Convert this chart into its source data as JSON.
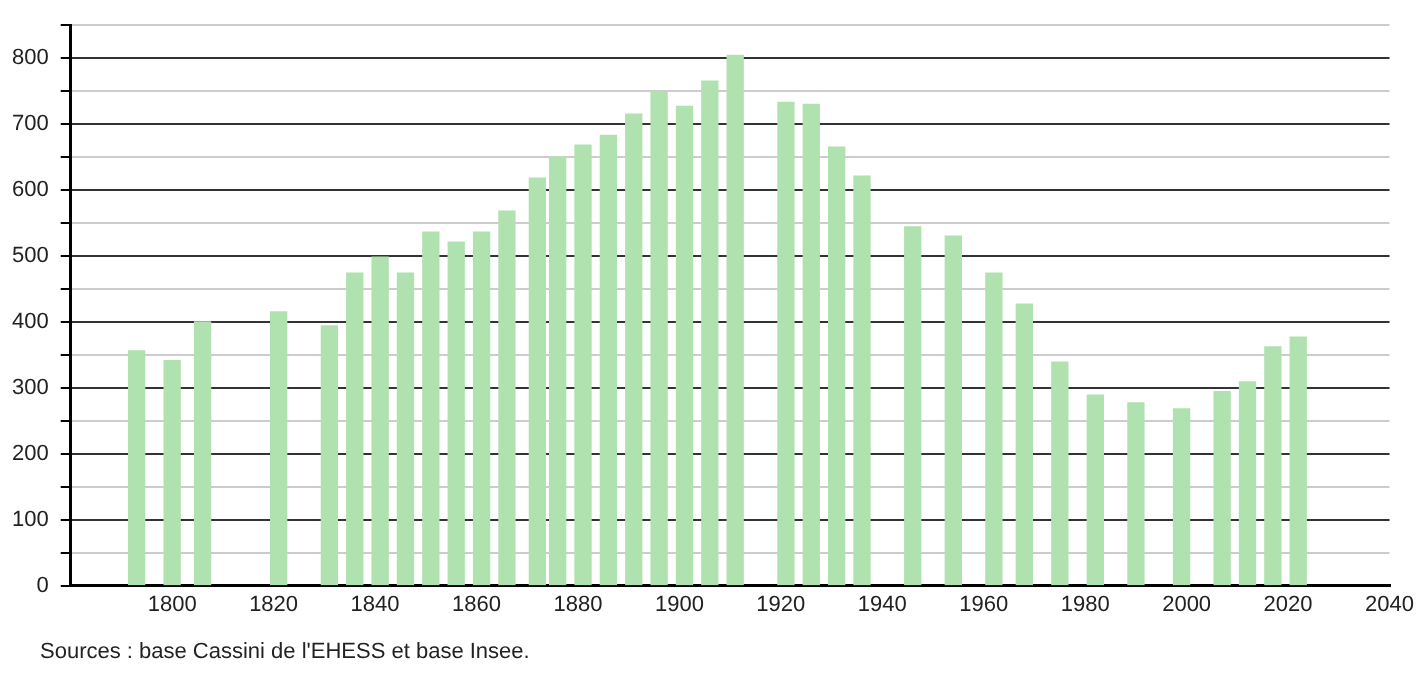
{
  "chart_data": {
    "type": "bar",
    "x": [
      1793,
      1800,
      1806,
      1821,
      1831,
      1836,
      1841,
      1846,
      1851,
      1856,
      1861,
      1866,
      1872,
      1876,
      1881,
      1886,
      1891,
      1896,
      1901,
      1906,
      1911,
      1921,
      1926,
      1931,
      1936,
      1946,
      1954,
      1962,
      1968,
      1975,
      1982,
      1990,
      1999,
      2007,
      2012,
      2017,
      2022
    ],
    "values": [
      356,
      341,
      400,
      415,
      394,
      474,
      498,
      474,
      536,
      521,
      536,
      568,
      618,
      650,
      668,
      683,
      715,
      749,
      727,
      765,
      804,
      733,
      730,
      665,
      621,
      544,
      530,
      474,
      427,
      339,
      289,
      277,
      268,
      294,
      309,
      362,
      377
    ],
    "color": "#b0e2b0",
    "xlim": [
      1780,
      2040
    ],
    "xticks": [
      1800,
      1820,
      1840,
      1860,
      1880,
      1900,
      1920,
      1940,
      1960,
      1980,
      2000,
      2020,
      2040
    ],
    "ylim": [
      0,
      850
    ],
    "yticks": [
      0,
      {
        "value": 50,
        "label": null
      },
      100,
      {
        "value": 150,
        "label": null
      },
      200,
      {
        "value": 250,
        "label": null
      },
      300,
      {
        "value": 350,
        "label": null
      },
      400,
      {
        "value": 450,
        "label": null
      },
      500,
      {
        "value": 550,
        "label": null
      },
      600,
      {
        "value": 650,
        "label": null
      },
      700,
      {
        "value": 750,
        "label": null
      },
      800,
      {
        "value": 850,
        "label": null
      }
    ],
    "grid": "y",
    "legend": false,
    "annotations": [
      "Sources : base Cassini de l'EHESS et base Insee."
    ]
  }
}
